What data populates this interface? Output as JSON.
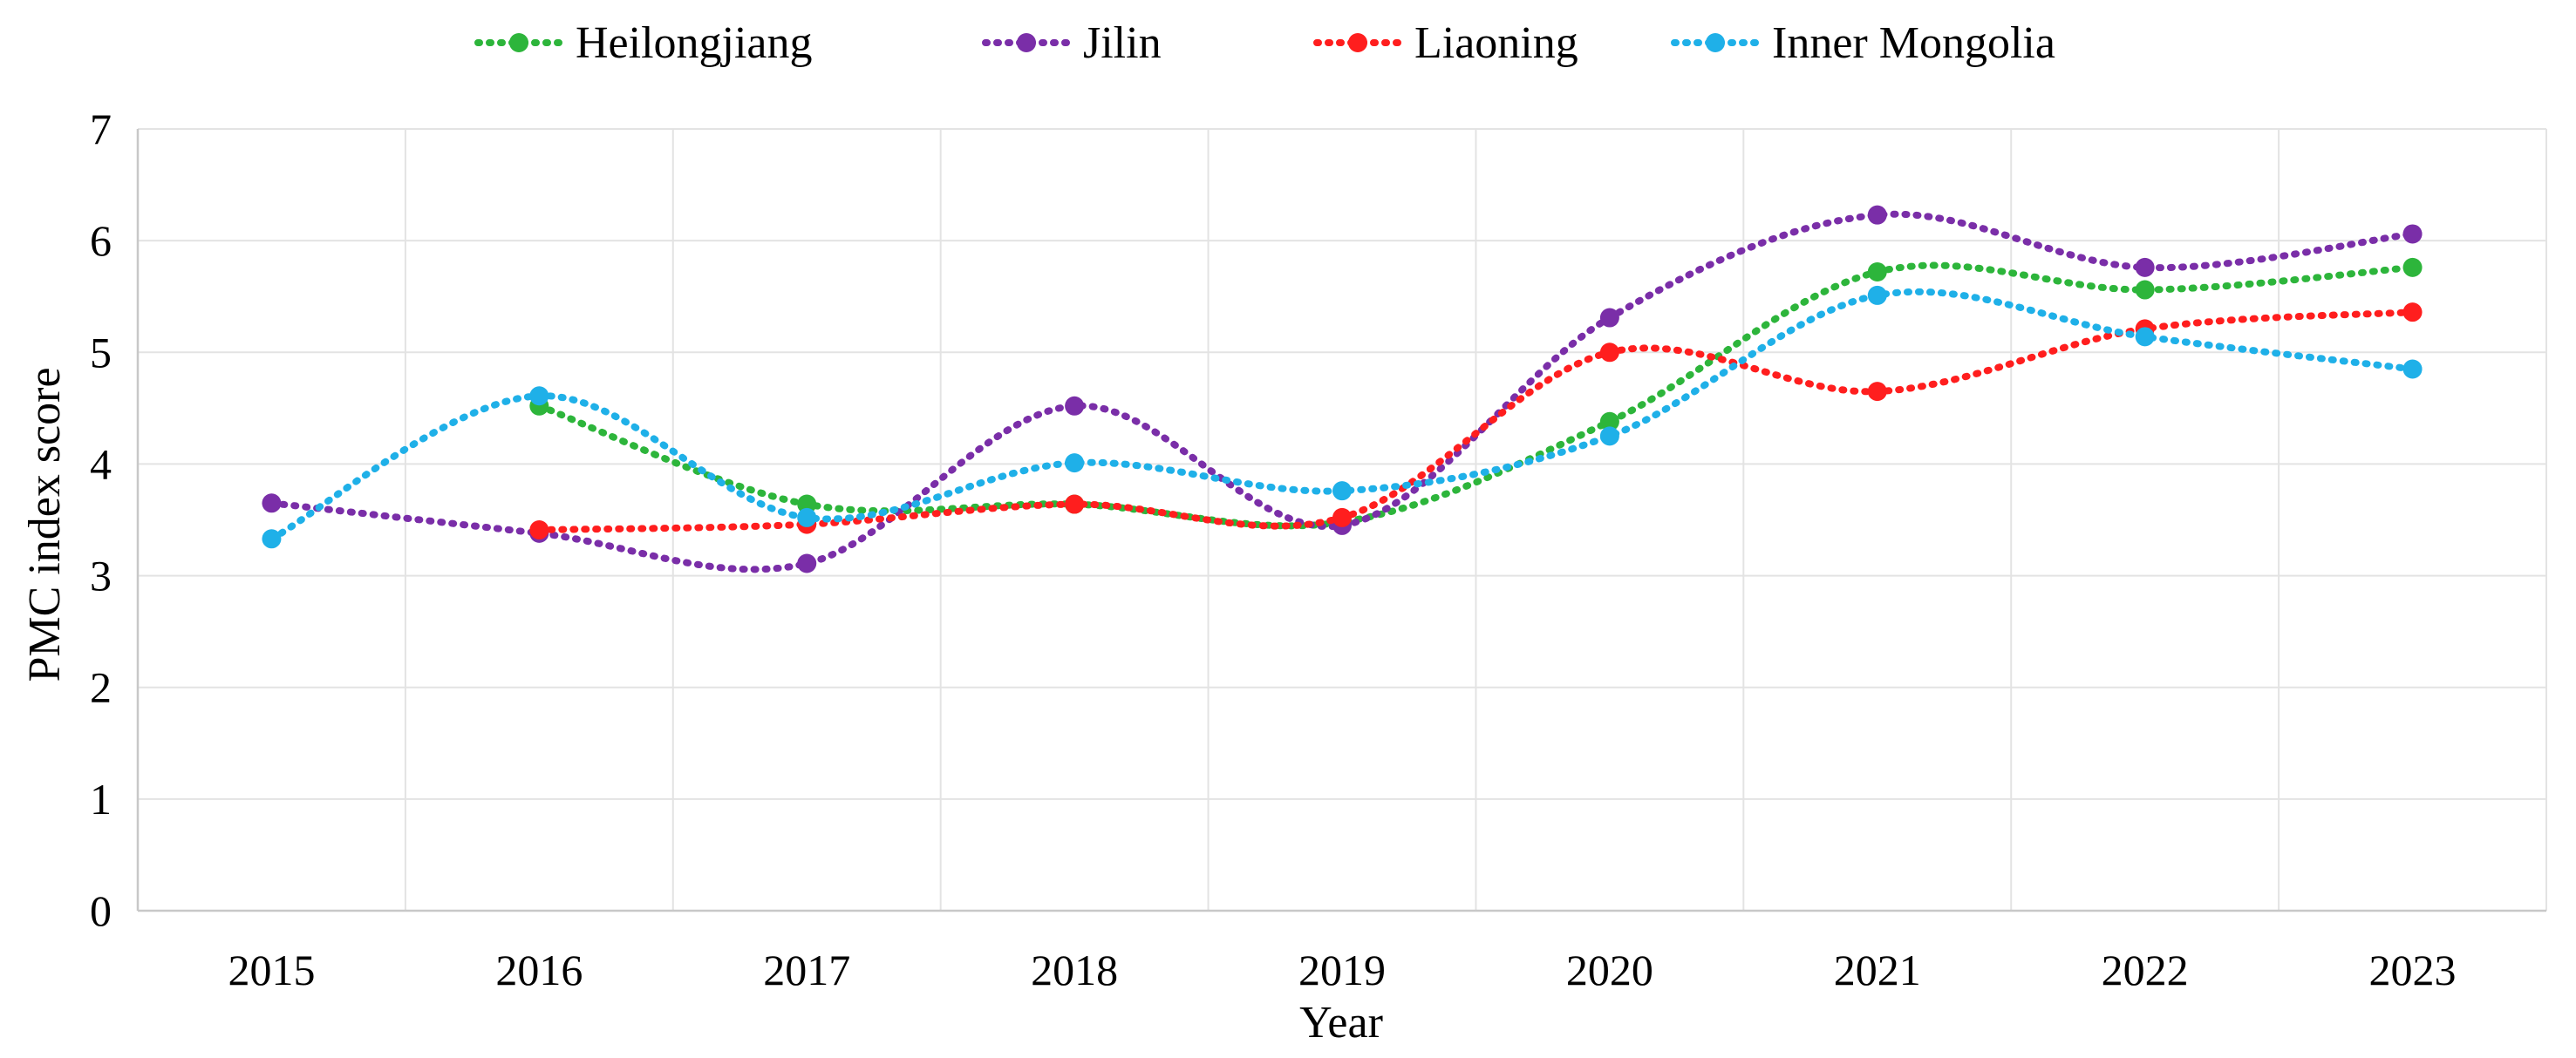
{
  "chart_data": {
    "type": "line",
    "title": "",
    "xlabel": "Year",
    "ylabel": "PMC index score",
    "categories": [
      "2015",
      "2016",
      "2017",
      "2018",
      "2019",
      "2020",
      "2021",
      "2022",
      "2023"
    ],
    "ylim": [
      0,
      7
    ],
    "yticks": [
      "0",
      "1",
      "2",
      "3",
      "4",
      "5",
      "6",
      "7"
    ],
    "grid": true,
    "legend_position": "top-center",
    "series": [
      {
        "name": "Heilongjiang",
        "color": "#2db53b",
        "values": [
          null,
          4.52,
          3.64,
          3.64,
          3.48,
          4.38,
          5.72,
          5.56,
          5.76
        ]
      },
      {
        "name": "Jilin",
        "color": "#7a2ea8",
        "values": [
          3.65,
          3.38,
          3.11,
          4.52,
          3.45,
          5.31,
          6.23,
          5.76,
          6.06
        ]
      },
      {
        "name": "Liaoning",
        "color": "#ff1e1e",
        "values": [
          null,
          3.41,
          3.46,
          3.64,
          3.52,
          5.0,
          4.65,
          5.21,
          5.36
        ]
      },
      {
        "name": "Inner Mongolia",
        "color": "#1fb0e8",
        "values": [
          3.33,
          4.61,
          3.52,
          4.01,
          3.76,
          4.25,
          5.51,
          5.14,
          4.85
        ]
      }
    ]
  }
}
